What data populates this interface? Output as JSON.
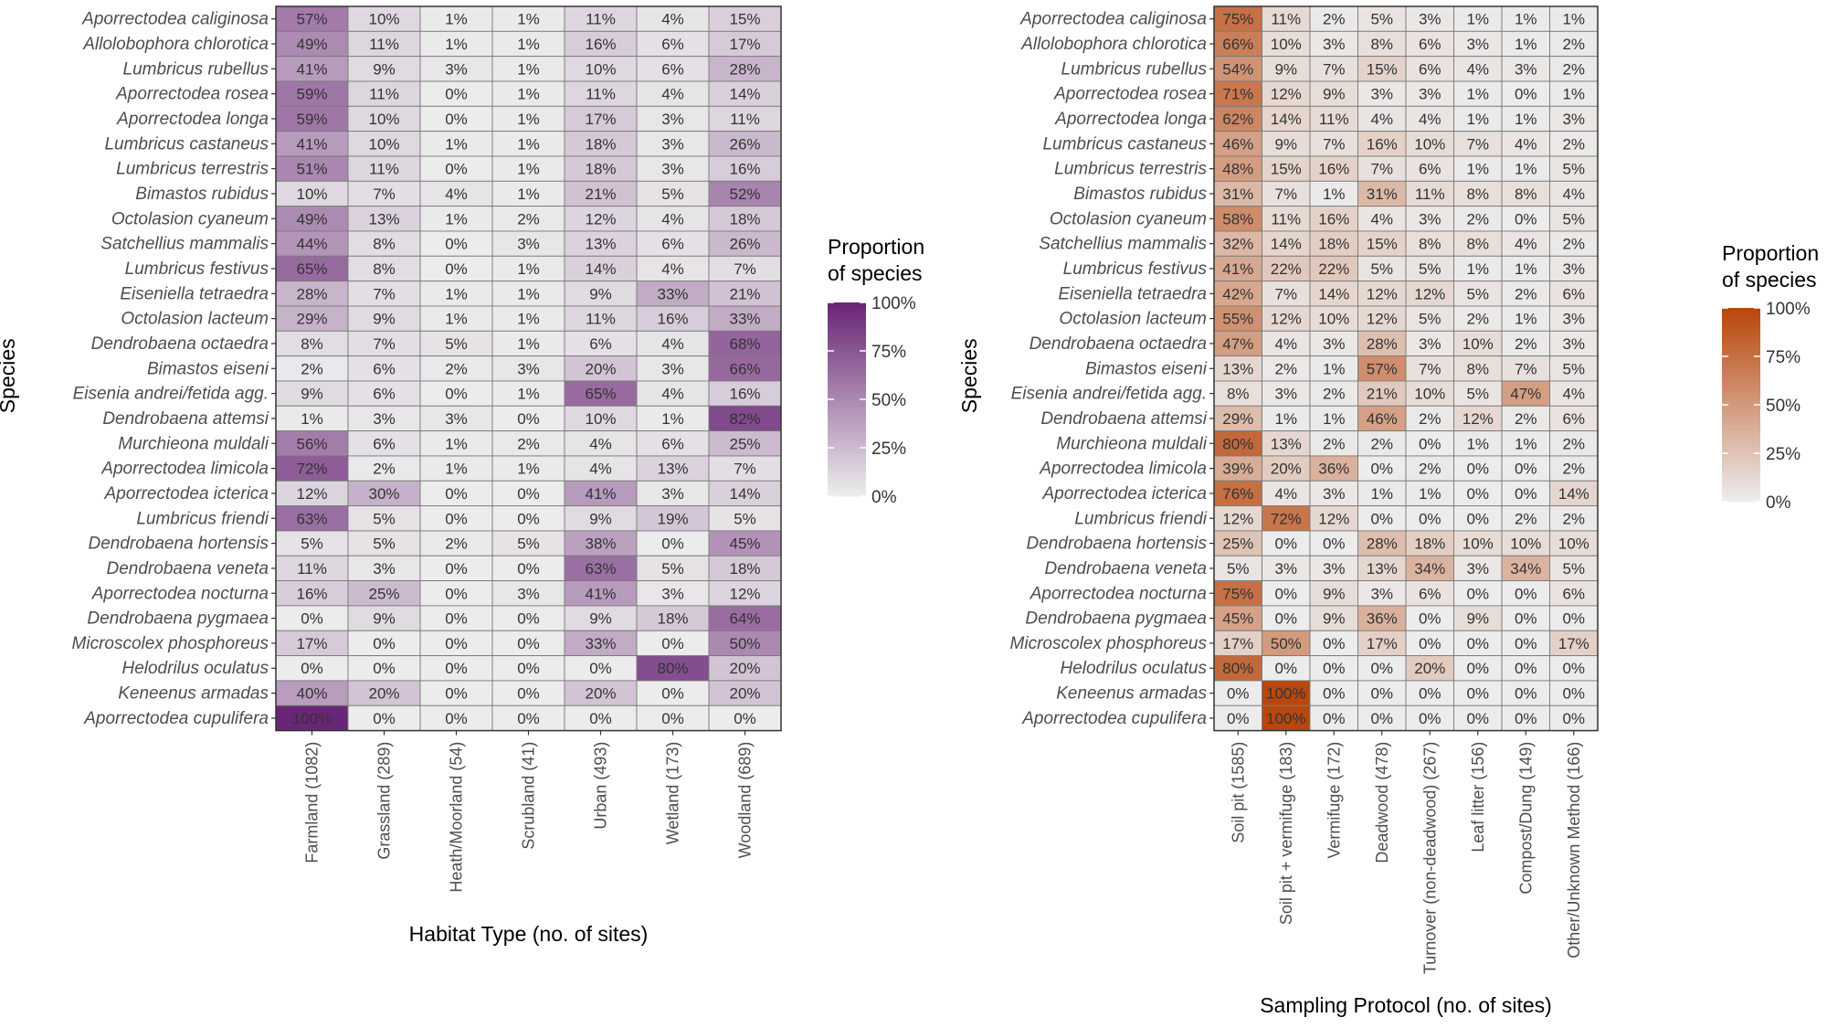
{
  "legend_title_line1": "Proportion",
  "legend_title_line2": "of species",
  "legend_ticks": [
    "100%",
    "75%",
    "50%",
    "25%",
    "0%"
  ],
  "colors": {
    "low": "#ececec",
    "habitat_high": "#6a2676",
    "protocol_high": "#b9470d",
    "panel_border": "#333333",
    "cell_border": "#7a7a7a",
    "text": "#333333"
  },
  "chart_data": [
    {
      "type": "heatmap",
      "palette": "purple",
      "xlabel": "Habitat Type (no. of sites)",
      "ylabel": "Species",
      "legend_title": "Proportion of species",
      "value_range": [
        0,
        100
      ],
      "categories": [
        "Farmland (1082)",
        "Grassland (289)",
        "Heath/Moorland (54)",
        "Scrubland (41)",
        "Urban (493)",
        "Wetland (173)",
        "Woodland (689)"
      ],
      "species": [
        "Aporrectodea caliginosa",
        "Allolobophora chlorotica",
        "Lumbricus rubellus",
        "Aporrectodea rosea",
        "Aporrectodea longa",
        "Lumbricus castaneus",
        "Lumbricus terrestris",
        "Bimastos rubidus",
        "Octolasion cyaneum",
        "Satchellius mammalis",
        "Lumbricus festivus",
        "Eiseniella tetraedra",
        "Octolasion lacteum",
        "Dendrobaena octaedra",
        "Bimastos eiseni",
        "Eisenia andrei/fetida agg.",
        "Dendrobaena attemsi",
        "Murchieona muldali",
        "Aporrectodea limicola",
        "Aporrectodea icterica",
        "Lumbricus friendi",
        "Dendrobaena hortensis",
        "Dendrobaena veneta",
        "Aporrectodea nocturna",
        "Dendrobaena pygmaea",
        "Microscolex phosphoreus",
        "Helodrilus oculatus",
        "Keneenus armadas",
        "Aporrectodea cupulifera"
      ],
      "values": [
        [
          57,
          10,
          1,
          1,
          11,
          4,
          15
        ],
        [
          49,
          11,
          1,
          1,
          16,
          6,
          17
        ],
        [
          41,
          9,
          3,
          1,
          10,
          6,
          28
        ],
        [
          59,
          11,
          0,
          1,
          11,
          4,
          14
        ],
        [
          59,
          10,
          0,
          1,
          17,
          3,
          11
        ],
        [
          41,
          10,
          1,
          1,
          18,
          3,
          26
        ],
        [
          51,
          11,
          0,
          1,
          18,
          3,
          16
        ],
        [
          10,
          7,
          4,
          1,
          21,
          5,
          52
        ],
        [
          49,
          13,
          1,
          2,
          12,
          4,
          18
        ],
        [
          44,
          8,
          0,
          3,
          13,
          6,
          26
        ],
        [
          65,
          8,
          0,
          1,
          14,
          4,
          7
        ],
        [
          28,
          7,
          1,
          1,
          9,
          33,
          21
        ],
        [
          29,
          9,
          1,
          1,
          11,
          16,
          33
        ],
        [
          8,
          7,
          5,
          1,
          6,
          4,
          68
        ],
        [
          2,
          6,
          2,
          3,
          20,
          3,
          66
        ],
        [
          9,
          6,
          0,
          1,
          65,
          4,
          16
        ],
        [
          1,
          3,
          3,
          0,
          10,
          1,
          82
        ],
        [
          56,
          6,
          1,
          2,
          4,
          6,
          25
        ],
        [
          72,
          2,
          1,
          1,
          4,
          13,
          7
        ],
        [
          12,
          30,
          0,
          0,
          41,
          3,
          14
        ],
        [
          63,
          5,
          0,
          0,
          9,
          19,
          5
        ],
        [
          5,
          5,
          2,
          5,
          38,
          0,
          45
        ],
        [
          11,
          3,
          0,
          0,
          63,
          5,
          18
        ],
        [
          16,
          25,
          0,
          3,
          41,
          3,
          12
        ],
        [
          0,
          9,
          0,
          0,
          9,
          18,
          64
        ],
        [
          17,
          0,
          0,
          0,
          33,
          0,
          50
        ],
        [
          0,
          0,
          0,
          0,
          0,
          80,
          20
        ],
        [
          40,
          20,
          0,
          0,
          20,
          0,
          20
        ],
        [
          100,
          0,
          0,
          0,
          0,
          0,
          0
        ]
      ]
    },
    {
      "type": "heatmap",
      "palette": "orange",
      "xlabel": "Sampling Protocol (no. of sites)",
      "ylabel": "Species",
      "legend_title": "Proportion of species",
      "value_range": [
        0,
        100
      ],
      "categories": [
        "Soil pit (1585)",
        "Soil pit + vermifuge (183)",
        "Vermifuge (172)",
        "Deadwood (478)",
        "Turnover (non-deadwood) (267)",
        "Leaf litter (156)",
        "Compost/Dung (149)",
        "Other/Unknown Method (166)"
      ],
      "species": [
        "Aporrectodea caliginosa",
        "Allolobophora chlorotica",
        "Lumbricus rubellus",
        "Aporrectodea rosea",
        "Aporrectodea longa",
        "Lumbricus castaneus",
        "Lumbricus terrestris",
        "Bimastos rubidus",
        "Octolasion cyaneum",
        "Satchellius mammalis",
        "Lumbricus festivus",
        "Eiseniella tetraedra",
        "Octolasion lacteum",
        "Dendrobaena octaedra",
        "Bimastos eiseni",
        "Eisenia andrei/fetida agg.",
        "Dendrobaena attemsi",
        "Murchieona muldali",
        "Aporrectodea limicola",
        "Aporrectodea icterica",
        "Lumbricus friendi",
        "Dendrobaena hortensis",
        "Dendrobaena veneta",
        "Aporrectodea nocturna",
        "Dendrobaena pygmaea",
        "Microscolex phosphoreus",
        "Helodrilus oculatus",
        "Keneenus armadas",
        "Aporrectodea cupulifera"
      ],
      "values": [
        [
          75,
          11,
          2,
          5,
          3,
          1,
          1,
          1
        ],
        [
          66,
          10,
          3,
          8,
          6,
          3,
          1,
          2
        ],
        [
          54,
          9,
          7,
          15,
          6,
          4,
          3,
          2
        ],
        [
          71,
          12,
          9,
          3,
          3,
          1,
          0,
          1
        ],
        [
          62,
          14,
          11,
          4,
          4,
          1,
          1,
          3
        ],
        [
          46,
          9,
          7,
          16,
          10,
          7,
          4,
          2
        ],
        [
          48,
          15,
          16,
          7,
          6,
          1,
          1,
          5
        ],
        [
          31,
          7,
          1,
          31,
          11,
          8,
          8,
          4
        ],
        [
          58,
          11,
          16,
          4,
          3,
          2,
          0,
          5
        ],
        [
          32,
          14,
          18,
          15,
          8,
          8,
          4,
          2
        ],
        [
          41,
          22,
          22,
          5,
          5,
          1,
          1,
          3
        ],
        [
          42,
          7,
          14,
          12,
          12,
          5,
          2,
          6
        ],
        [
          55,
          12,
          10,
          12,
          5,
          2,
          1,
          3
        ],
        [
          47,
          4,
          3,
          28,
          3,
          10,
          2,
          3
        ],
        [
          13,
          2,
          1,
          57,
          7,
          8,
          7,
          5
        ],
        [
          8,
          3,
          2,
          21,
          10,
          5,
          47,
          4
        ],
        [
          29,
          1,
          1,
          46,
          2,
          12,
          2,
          6
        ],
        [
          80,
          13,
          2,
          2,
          0,
          1,
          1,
          2
        ],
        [
          39,
          20,
          36,
          0,
          2,
          0,
          0,
          2
        ],
        [
          76,
          4,
          3,
          1,
          1,
          0,
          0,
          14
        ],
        [
          12,
          72,
          12,
          0,
          0,
          0,
          2,
          2
        ],
        [
          25,
          0,
          0,
          28,
          18,
          10,
          10,
          10
        ],
        [
          5,
          3,
          3,
          13,
          34,
          3,
          34,
          5
        ],
        [
          75,
          0,
          9,
          3,
          6,
          0,
          0,
          6
        ],
        [
          45,
          0,
          9,
          36,
          0,
          9,
          0,
          0
        ],
        [
          17,
          50,
          0,
          17,
          0,
          0,
          0,
          17
        ],
        [
          80,
          0,
          0,
          0,
          20,
          0,
          0,
          0
        ],
        [
          0,
          100,
          0,
          0,
          0,
          0,
          0,
          0
        ],
        [
          0,
          100,
          0,
          0,
          0,
          0,
          0,
          0
        ]
      ]
    }
  ]
}
